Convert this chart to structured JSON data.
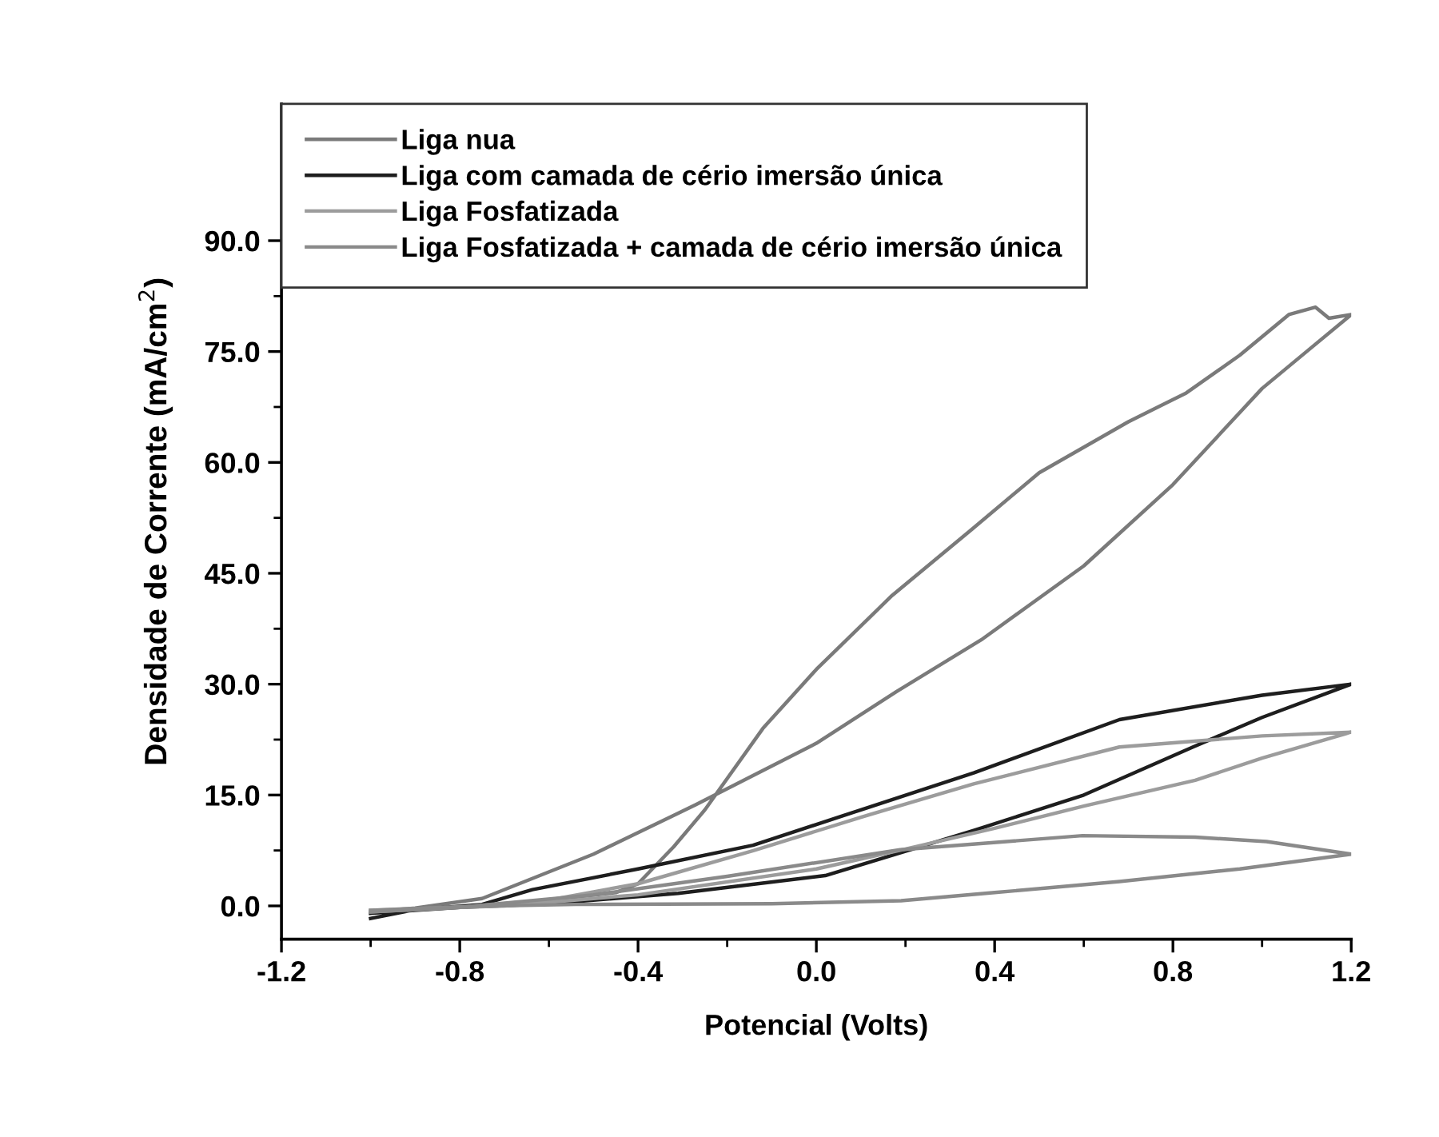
{
  "chart_data": {
    "type": "line",
    "xlabel": "Potencial (Volts)",
    "ylabel": "Densidade de Corrente (mA/cm$^{2}$)",
    "xlim": [
      -1.2,
      1.2
    ],
    "xticks": [
      {
        "value": -1.2,
        "label": "-1.2"
      },
      {
        "value": -0.8,
        "label": "-0.8"
      },
      {
        "value": -0.4,
        "label": "-0.4"
      },
      {
        "value": 0,
        "label": "0.0"
      },
      {
        "value": 0.4,
        "label": "0.4"
      },
      {
        "value": 0.8,
        "label": "0.8"
      },
      {
        "value": 1.2,
        "label": "1.2"
      }
    ],
    "ylim": [
      -4.5,
      108.5
    ],
    "yticks": [
      {
        "value": 0,
        "label": "0.0"
      },
      {
        "value": 15,
        "label": "15.0"
      },
      {
        "value": 30,
        "label": "30.0"
      },
      {
        "value": 45,
        "label": "45.0"
      },
      {
        "value": 60,
        "label": "60.0"
      },
      {
        "value": 75,
        "label": "75.0"
      },
      {
        "value": 90,
        "label": "90.0"
      }
    ],
    "grid": false,
    "legend": "top left",
    "marker": "none",
    "line_style": "solid",
    "series": [
      {
        "name": "Liga nua",
        "color": "#7a7a7a",
        "x": [
          -1.0,
          -0.9,
          -0.75,
          -0.6,
          -0.45,
          -0.4,
          -0.32,
          -0.25,
          -0.12,
          0.0,
          0.17,
          0.35,
          0.5,
          0.7,
          0.83,
          0.95,
          1.06,
          1.12,
          1.15,
          1.2,
          1.1,
          1.0,
          0.8,
          0.6,
          0.37,
          0.18,
          0.0,
          -0.27,
          -0.5,
          -0.75,
          -0.9,
          -1.0
        ],
        "values": [
          -1.0,
          -0.5,
          0.0,
          0.8,
          1.8,
          3.0,
          8.0,
          13.0,
          24.0,
          32.0,
          42.0,
          51.0,
          58.6,
          65.5,
          69.4,
          74.5,
          80.0,
          81.0,
          79.5,
          80.0,
          75.0,
          70.0,
          57.0,
          46.0,
          36.0,
          29.0,
          22.0,
          13.7,
          7.0,
          1.0,
          -0.3,
          -0.8
        ]
      },
      {
        "name": "Liga com camada de cério imersão única",
        "color": "#1e1e1e",
        "x": [
          -1.0,
          -0.9,
          -0.75,
          -0.637,
          -0.4,
          -0.142,
          0.1,
          0.353,
          0.68,
          1.0,
          1.2,
          1.0,
          0.845,
          0.6,
          0.353,
          0.02,
          -0.31,
          -0.6,
          -0.8,
          -1.0
        ],
        "values": [
          -1.7,
          -0.5,
          0.2,
          2.2,
          5.0,
          8.2,
          13.0,
          18.0,
          25.2,
          28.5,
          30.0,
          25.5,
          21.5,
          15.0,
          10.2,
          4.1,
          1.7,
          0.3,
          -0.2,
          -1.0
        ]
      },
      {
        "name": "Liga Fosfatizada",
        "color": "#9c9c9c",
        "x": [
          -1.0,
          -0.8,
          -0.6,
          -0.4,
          -0.14,
          0.1,
          0.353,
          0.68,
          1.0,
          1.2,
          1.0,
          0.85,
          0.6,
          0.4,
          0.2,
          0.0,
          -0.4,
          -0.7,
          -1.0
        ],
        "values": [
          -0.8,
          -0.2,
          0.8,
          3.0,
          7.5,
          12.0,
          16.5,
          21.5,
          23.0,
          23.5,
          20.0,
          17.0,
          13.5,
          10.5,
          7.7,
          5.0,
          1.5,
          0.0,
          -0.6
        ]
      },
      {
        "name": "Liga Fosfatizada + camada de cério imersão única",
        "color": "#8a8a8a",
        "x": [
          -1.0,
          -0.8,
          -0.5,
          -0.2,
          0.188,
          0.597,
          0.85,
          1.01,
          1.2,
          0.95,
          0.68,
          0.4,
          0.19,
          -0.1,
          -0.54,
          -0.8,
          -1.0
        ],
        "values": [
          -0.8,
          -0.2,
          1.5,
          4.0,
          7.6,
          9.5,
          9.3,
          8.7,
          7.0,
          5.0,
          3.3,
          1.8,
          0.7,
          0.3,
          0.2,
          -0.1,
          -0.6
        ]
      }
    ]
  }
}
